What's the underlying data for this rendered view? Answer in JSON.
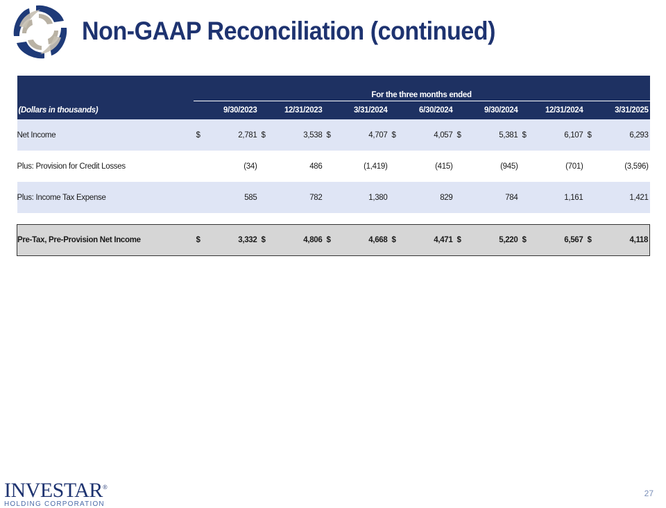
{
  "slide": {
    "title": "Non-GAAP Reconciliation (continued)",
    "page_number": "27"
  },
  "brand": {
    "name": "INVESTAR",
    "registered": "®",
    "subtitle": "HOLDING CORPORATION"
  },
  "table": {
    "period_header": "For the three months ended",
    "label_header": "(Dollars in thousands)",
    "columns": [
      "9/30/2023",
      "12/31/2023",
      "3/31/2024",
      "6/30/2024",
      "9/30/2024",
      "12/31/2024",
      "3/31/2025"
    ],
    "rows": [
      {
        "label": "Net Income",
        "currency": [
          "$",
          "$",
          "$",
          "$",
          "$",
          "$",
          "$"
        ],
        "values": [
          "2,781",
          "3,538",
          "4,707",
          "4,057",
          "5,381",
          "6,107",
          "6,293"
        ]
      },
      {
        "label": "Plus: Provision for Credit Losses",
        "currency": [
          "",
          "",
          "",
          "",
          "",
          "",
          ""
        ],
        "values": [
          "(34)",
          "486",
          "(1,419)",
          "(415)",
          "(945)",
          "(701)",
          "(3,596)"
        ]
      },
      {
        "label": "Plus: Income Tax Expense",
        "currency": [
          "",
          "",
          "",
          "",
          "",
          "",
          ""
        ],
        "values": [
          "585",
          "782",
          "1,380",
          "829",
          "784",
          "1,161",
          "1,421"
        ]
      }
    ],
    "total": {
      "label": "Pre-Tax, Pre-Provision Net Income",
      "currency": [
        "$",
        "$",
        "$",
        "$",
        "$",
        "$",
        "$"
      ],
      "values": [
        "3,332",
        "4,806",
        "4,668",
        "4,471",
        "5,220",
        "6,567",
        "4,118"
      ]
    }
  },
  "colors": {
    "title": "#1e3370",
    "header_bg": "#1e3162",
    "row_shade": "#dfe5f5",
    "total_bg": "#d6d6d6"
  },
  "icons": [
    "company-logo-mark"
  ]
}
